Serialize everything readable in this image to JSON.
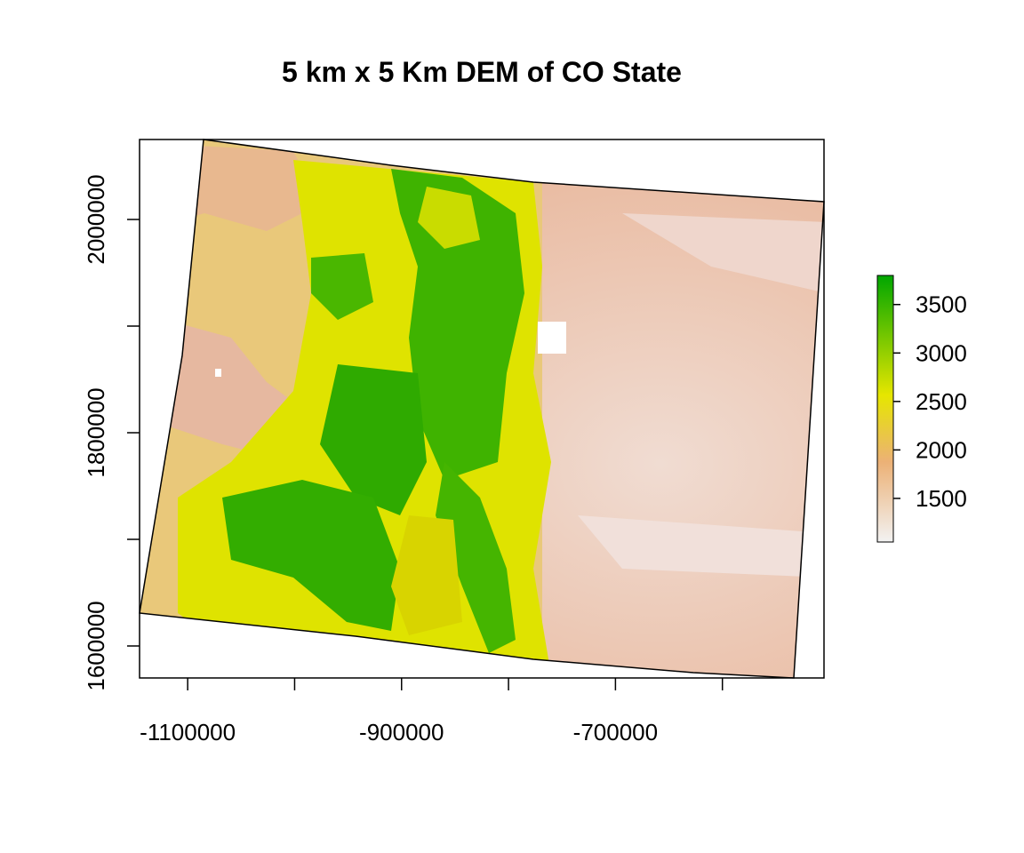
{
  "chart_data": {
    "type": "heatmap",
    "title": "5 km x 5 Km DEM of CO State",
    "xlabel": "",
    "ylabel": "",
    "x_ticks": [
      "-1100000",
      "-900000",
      "-700000"
    ],
    "x_tick_values": [
      -1100000,
      -1000000,
      -900000,
      -800000,
      -700000,
      -600000
    ],
    "y_ticks": [
      "1600000",
      "1800000",
      "2000000"
    ],
    "y_tick_values": [
      1600000,
      1700000,
      1800000,
      1900000,
      2000000
    ],
    "xlim": [
      -1145000,
      -505000
    ],
    "ylim": [
      1570000,
      2075000
    ],
    "legend": {
      "placement": "right",
      "min": 1050,
      "max": 3800,
      "ticks": [
        "1500",
        "2000",
        "2500",
        "3000",
        "3500"
      ],
      "tick_values": [
        1500,
        2000,
        2500,
        3000,
        3500
      ]
    },
    "colors": {
      "low": "#f2f2f2",
      "tan": "#ecb176",
      "yellow": "#e6e600",
      "high": "#00a600"
    }
  }
}
